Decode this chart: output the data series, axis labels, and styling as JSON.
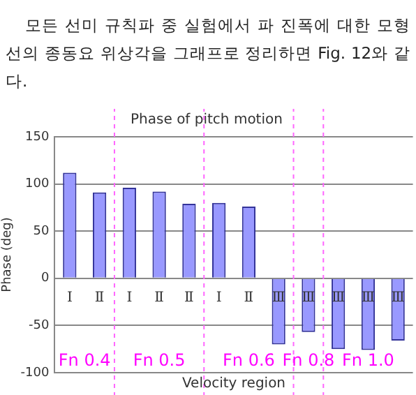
{
  "chart_data": {
    "type": "bar",
    "title": "Phase of pitch motion",
    "xlabel": "Velocity region",
    "ylabel": "Phase (deg)",
    "categories": [
      "Ⅰ",
      "Ⅱ",
      "Ⅰ",
      "Ⅱ",
      "Ⅱ",
      "Ⅰ",
      "Ⅱ",
      "Ⅲ",
      "Ⅲ",
      "Ⅲ",
      "Ⅲ",
      "Ⅲ"
    ],
    "values": [
      112,
      91,
      96,
      92,
      79,
      80,
      76,
      -70,
      -57,
      -75,
      -76,
      -66
    ],
    "color": "#9999ff",
    "ylim": [
      -100,
      150
    ],
    "yticks": [
      -100,
      -50,
      0,
      50,
      100,
      150
    ],
    "grid": "y",
    "annotations": [
      "모든 선미 규칙파 중 실험에서 파 진폭에 대한 모형선의 종동요 위상각을 그래프로 정리하면 Fig. 12와 같다.",
      "Fn 0.4",
      "Fn 0.5",
      "Fn 0.6",
      "Fn 0.8",
      "Fn 1.0"
    ]
  }
}
